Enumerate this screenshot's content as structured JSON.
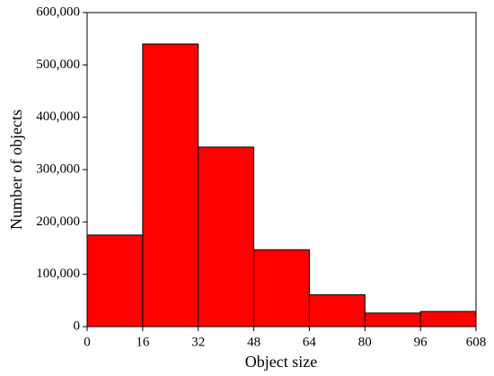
{
  "chart_data": {
    "type": "histogram",
    "xlabel": "Object size",
    "ylabel": "Number of objects",
    "bins": [
      0,
      16,
      32,
      48,
      64,
      80,
      96,
      608
    ],
    "counts": [
      175000,
      540000,
      343000,
      147000,
      61000,
      26000,
      29000
    ],
    "color": "#ff0000",
    "edge_color": "#000000",
    "last_tick_color": "#1a1aff",
    "ylim": [
      0,
      600000
    ],
    "yticks": [
      0,
      {
        "value": 100000,
        "label": "100,000"
      },
      {
        "value": 200000,
        "label": "200,000"
      },
      {
        "value": 300000,
        "label": "300,000"
      },
      {
        "value": 400000,
        "label": "400,000"
      },
      {
        "value": 500000,
        "label": "500,000"
      },
      {
        "value": 600000,
        "label": "600,000"
      }
    ],
    "grid": false
  }
}
